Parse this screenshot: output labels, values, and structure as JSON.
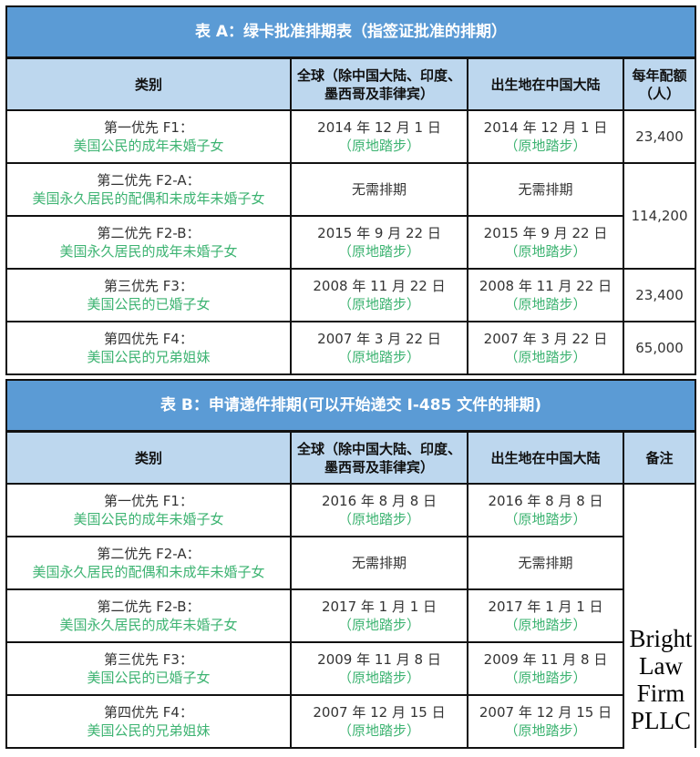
{
  "table_a": {
    "title": "表 A：绿卡批准排期表（指签证批准的排期）",
    "headers": [
      "类别",
      "全球（除中国大陆、印度、墨西哥及菲律宾）",
      "出生地在中国大陆",
      "每年配额（人）"
    ],
    "rows": [
      {
        "cat1": "第一优先 F1：",
        "cat2": "美国公民的成年未婚子女",
        "world": "2014 年 12 月 1 日",
        "world_note": "（原地踏步）",
        "china": "2014 年 12 月 1 日",
        "china_note": "（原地踏步）",
        "quota": "23,400"
      },
      {
        "cat1": "第二优先 F2-A：",
        "cat2": "美国永久居民的配偶和未成年未婚子女",
        "world": "无需排期",
        "world_note": "",
        "china": "无需排期",
        "china_note": "",
        "quota": "114,200"
      },
      {
        "cat1": "第二优先 F2-B：",
        "cat2": "美国永久居民的成年未婚子女",
        "world": "2015 年 9 月 22 日",
        "world_note": "（原地踏步）",
        "china": "2015 年 9 月 22 日",
        "china_note": "（原地踏步）"
      },
      {
        "cat1": "第三优先 F3：",
        "cat2": "美国公民的已婚子女",
        "world": "2008 年 11 月 22 日",
        "world_note": "（原地踏步）",
        "china": "2008 年 11 月 22 日",
        "china_note": "（原地踏步）",
        "quota": "23,400"
      },
      {
        "cat1": "第四优先 F4：",
        "cat2": "美国公民的兄弟姐妹",
        "world": "2007 年 3 月 22 日",
        "world_note": "（原地踏步）",
        "china": "2007 年 3 月 22 日",
        "china_note": "（原地踏步）",
        "quota": "65,000"
      }
    ]
  },
  "table_b": {
    "title": "表 B：申请递件排期(可以开始递交 I-485 文件的排期)",
    "headers": [
      "类别",
      "全球（除中国大陆、印度、墨西哥及菲律宾）",
      "出生地在中国大陆",
      "备注"
    ],
    "rows": [
      {
        "cat1": "第一优先 F1：",
        "cat2": "美国公民的成年未婚子女",
        "world": "2016 年 8 月 8 日",
        "world_note": "（原地踏步）",
        "china": "2016 年 8 月 8 日",
        "china_note": "（原地踏步）"
      },
      {
        "cat1": "第二优先 F2-A：",
        "cat2": "美国永久居民的配偶和未成年未婚子女",
        "world": "无需排期",
        "world_note": "",
        "china": "无需排期",
        "china_note": ""
      },
      {
        "cat1": "第二优先 F2-B：",
        "cat2": "美国永久居民的成年未婚子女",
        "world": "2017 年 1 月 1 日",
        "world_note": "（原地踏步）",
        "china": "2017 年 1 月 1 日",
        "china_note": "（原地踏步）"
      },
      {
        "cat1": "第三优先 F3：",
        "cat2": "美国公民的已婚子女",
        "world": "2009 年 11 月 8 日",
        "world_note": "（原地踏步）",
        "china": "2009 年 11 月 8 日",
        "china_note": "（原地踏步）"
      },
      {
        "cat1": "第四优先 F4：",
        "cat2": "美国公民的兄弟姐妹",
        "world": "2007 年 12 月 15 日",
        "world_note": "（原地踏步）",
        "china": "2007 年 12 月 15 日",
        "china_note": "（原地踏步）"
      }
    ]
  },
  "watermark": "Bright Law Firm PLLC",
  "colors": {
    "title_bg": "#5b9bd5",
    "header_bg": "#bdd7ee",
    "note_green": "#3cb371"
  }
}
